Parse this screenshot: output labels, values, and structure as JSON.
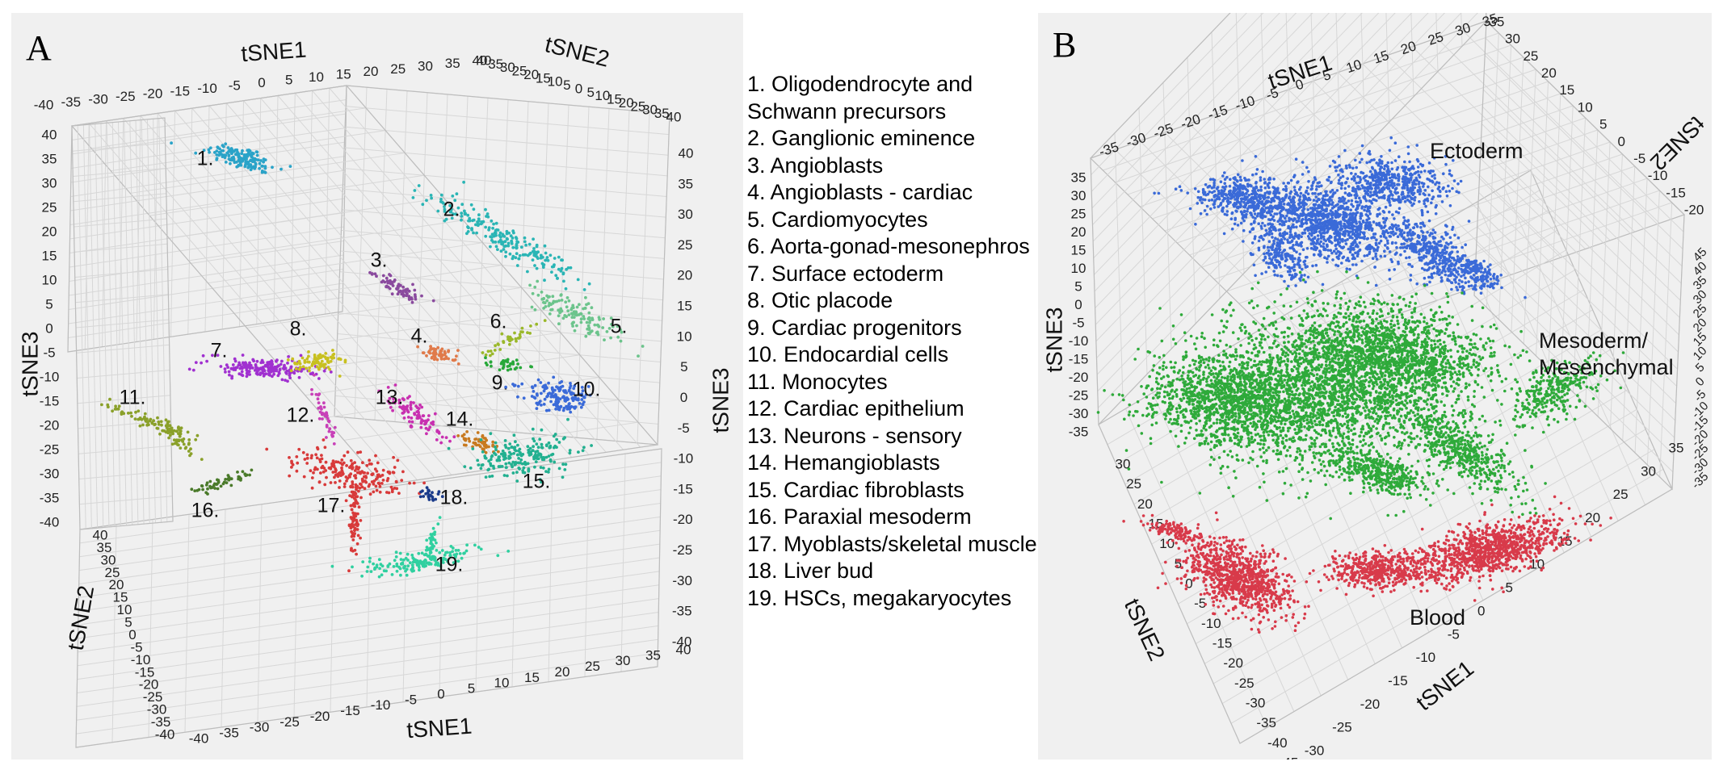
{
  "panels": {
    "a": {
      "label": "A"
    },
    "b": {
      "label": "B"
    }
  },
  "legend": {
    "items": [
      "1. Oligodendrocyte and\nSchwann precursors",
      "2. Ganglionic eminence",
      "3. Angioblasts",
      "4. Angioblasts - cardiac",
      "5. Cardiomyocytes",
      "6. Aorta-gonad-mesonephros",
      "7. Surface ectoderm",
      "8. Otic placode",
      "9. Cardiac progenitors",
      "10. Endocardial cells",
      "11. Monocytes",
      "12. Cardiac epithelium",
      "13. Neurons - sensory",
      "14. Hemangioblasts",
      "15. Cardiac fibroblasts",
      "16. Paraxial mesoderm",
      "17. Myoblasts/skeletal muscle",
      "18. Liver bud",
      "19. HSCs, megakaryocytes"
    ]
  },
  "chart_data": [
    {
      "type": "scatter",
      "title": "A",
      "xlabel": "tSNE1",
      "ylabel": "tSNE2",
      "zlabel": "tSNE3",
      "xlim": [
        -40,
        40
      ],
      "ylim": [
        -40,
        40
      ],
      "zlim": [
        -40,
        40
      ],
      "ticks": [
        "-40",
        "-35",
        "-30",
        "-25",
        "-20",
        "-15",
        "-10",
        "-5",
        "0",
        "5",
        "10",
        "15",
        "20",
        "25",
        "30",
        "35",
        "40"
      ],
      "z_ticks": [
        "40",
        "35",
        "30",
        "25",
        "20",
        "15",
        "10",
        "5",
        "0",
        "-5",
        "-10",
        "-15",
        "-20",
        "-25",
        "-30",
        "-35",
        "-40"
      ],
      "grid": true,
      "clusters": [
        {
          "id": 1,
          "label": "1.",
          "name": "Oligodendrocyte and Schwann precursors",
          "color": "#2aa3c8"
        },
        {
          "id": 2,
          "label": "2.",
          "name": "Ganglionic eminence",
          "color": "#2ab5b5"
        },
        {
          "id": 3,
          "label": "3.",
          "name": "Angioblasts",
          "color": "#8a4a9e"
        },
        {
          "id": 4,
          "label": "4.",
          "name": "Angioblasts - cardiac",
          "color": "#e07a4a"
        },
        {
          "id": 5,
          "label": "5.",
          "name": "Cardiomyocytes",
          "color": "#6cc48c"
        },
        {
          "id": 6,
          "label": "6.",
          "name": "Aorta-gonad-mesonephros",
          "color": "#9ab82a"
        },
        {
          "id": 7,
          "label": "7.",
          "name": "Surface ectoderm",
          "color": "#a030d0"
        },
        {
          "id": 8,
          "label": "8.",
          "name": "Otic placode",
          "color": "#c8c020"
        },
        {
          "id": 9,
          "label": "9.",
          "name": "Cardiac progenitors",
          "color": "#28a83a"
        },
        {
          "id": 10,
          "label": "10.",
          "name": "Endocardial cells",
          "color": "#3a6ad8"
        },
        {
          "id": 11,
          "label": "11.",
          "name": "Monocytes",
          "color": "#8aa02a"
        },
        {
          "id": 12,
          "label": "12.",
          "name": "Cardiac epithelium",
          "color": "#c840b8"
        },
        {
          "id": 13,
          "label": "13.",
          "name": "Neurons - sensory",
          "color": "#c830b0"
        },
        {
          "id": 14,
          "label": "14.",
          "name": "Hemangioblasts",
          "color": "#c87a20"
        },
        {
          "id": 15,
          "label": "15.",
          "name": "Cardiac fibroblasts",
          "color": "#22b090"
        },
        {
          "id": 16,
          "label": "16.",
          "name": "Paraxial mesoderm",
          "color": "#4a7a2a"
        },
        {
          "id": 17,
          "label": "17.",
          "name": "Myoblasts/skeletal muscle",
          "color": "#d83a3a"
        },
        {
          "id": 18,
          "label": "18.",
          "name": "Liver bud",
          "color": "#1a3a8a"
        },
        {
          "id": 19,
          "label": "19.",
          "name": "HSCs, megakaryocytes",
          "color": "#30d0a0"
        }
      ]
    },
    {
      "type": "scatter",
      "title": "B",
      "xlabel": "tSNE1",
      "ylabel": "tSNE2",
      "zlabel": "tSNE3",
      "top_x_ticks": [
        "-35",
        "-30",
        "-25",
        "-20",
        "-15",
        "-10",
        "-5",
        "0",
        "5",
        "10",
        "15",
        "20",
        "25",
        "30",
        "35"
      ],
      "top_right_ticks": [
        "-35",
        "30",
        "25",
        "20",
        "15",
        "10",
        "5",
        "0",
        "-5",
        "-10",
        "-15",
        "-20"
      ],
      "z_ticks": [
        "35",
        "30",
        "25",
        "20",
        "15",
        "10",
        "5",
        "0",
        "-5",
        "-10",
        "-15",
        "-20",
        "-25",
        "-30",
        "-35"
      ],
      "bottom_left_ticks": [
        "30",
        "25",
        "20",
        "15",
        "10",
        "5",
        "0",
        "-5",
        "-10",
        "-15",
        "-20",
        "-25",
        "-30",
        "-35",
        "-40",
        "-45"
      ],
      "bottom_right_ticks": [
        "-30",
        "-25",
        "-20",
        "-15",
        "-10",
        "-5",
        "0",
        "5",
        "10",
        "15",
        "20",
        "25",
        "30",
        "35"
      ],
      "right_ticks": [
        "-35",
        "-30",
        "-25",
        "-20",
        "-15",
        "-10",
        "-5",
        "0",
        "5",
        "10",
        "15",
        "20",
        "25",
        "30",
        "35",
        "40",
        "45"
      ],
      "grid": true,
      "groups": [
        {
          "name": "Ectoderm",
          "color": "#3a6ad8"
        },
        {
          "name": "Mesoderm/\nMesenchymal",
          "color": "#2eaa3a"
        },
        {
          "name": "Blood",
          "color": "#d83a4a"
        }
      ]
    }
  ]
}
